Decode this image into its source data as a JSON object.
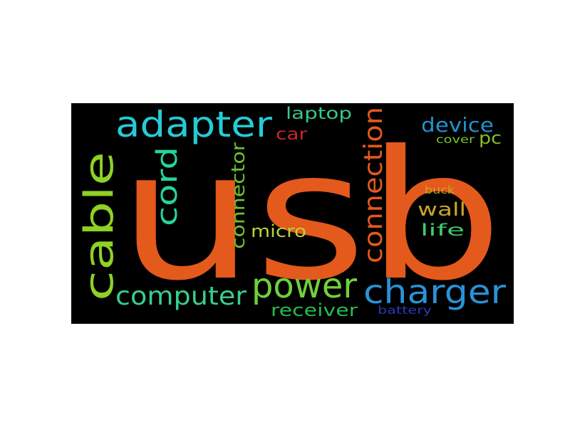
{
  "background": "#000000",
  "words": [
    {
      "text": "usb",
      "color": "#e4591c"
    },
    {
      "text": "cable",
      "color": "#8fd124"
    },
    {
      "text": "adapter",
      "color": "#25cbd6"
    },
    {
      "text": "cord",
      "color": "#27d39a"
    },
    {
      "text": "connector",
      "color": "#69c32d"
    },
    {
      "text": "micro",
      "color": "#b9d33a"
    },
    {
      "text": "laptop",
      "color": "#38c788"
    },
    {
      "text": "car",
      "color": "#c7252a"
    },
    {
      "text": "connection",
      "color": "#e4591c"
    },
    {
      "text": "device",
      "color": "#2292cf"
    },
    {
      "text": "pc",
      "color": "#83bd2c"
    },
    {
      "text": "cover",
      "color": "#76c426"
    },
    {
      "text": "buck",
      "color": "#c9a527"
    },
    {
      "text": "wall",
      "color": "#c9a52a"
    },
    {
      "text": "life",
      "color": "#3fc96c"
    },
    {
      "text": "power",
      "color": "#6fd13a"
    },
    {
      "text": "computer",
      "color": "#36d08c"
    },
    {
      "text": "charger",
      "color": "#2a91d6"
    },
    {
      "text": "receiver",
      "color": "#26bc4a"
    },
    {
      "text": "battery",
      "color": "#2a39b8"
    }
  ]
}
